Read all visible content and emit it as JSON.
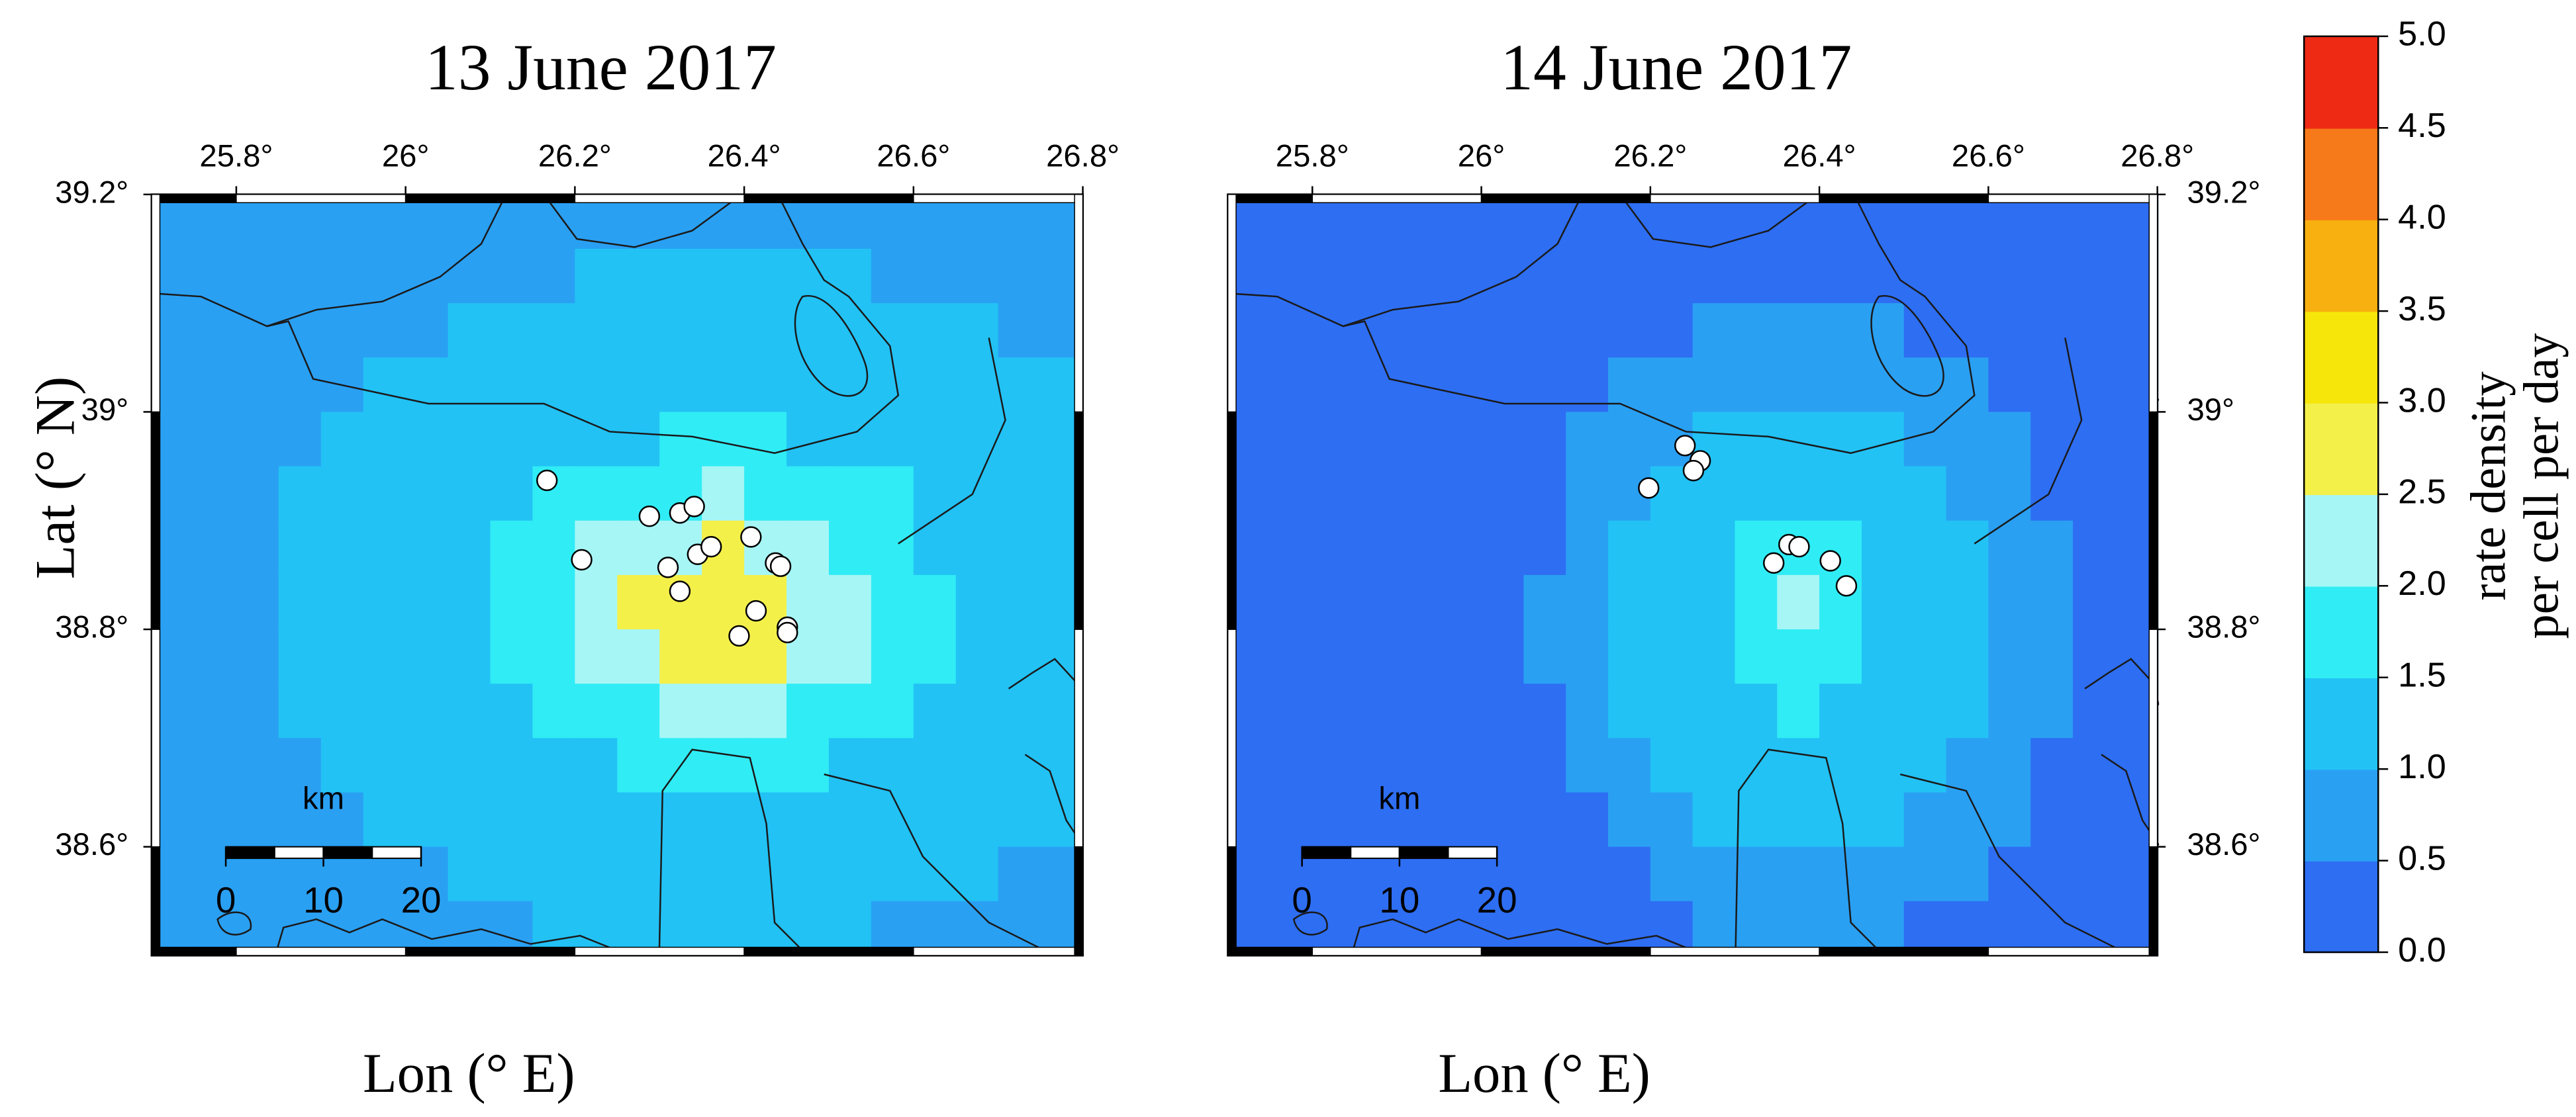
{
  "chart_data": [
    {
      "type": "heatmap",
      "title": "13 June 2017",
      "xlabel": "Lon (° E)",
      "ylabel": "Lat (° N)",
      "xlim": [
        25.7,
        26.8
      ],
      "ylim": [
        38.5,
        39.2
      ],
      "xticks": [
        {
          "value": 25.8,
          "label": "25.8°"
        },
        {
          "value": 26,
          "label": "26°"
        },
        {
          "value": 26.2,
          "label": "26.2°"
        },
        {
          "value": 26.4,
          "label": "26.4°"
        },
        {
          "value": 26.6,
          "label": "26.6°"
        },
        {
          "value": 26.8,
          "label": "26.8°"
        }
      ],
      "yticks": [
        {
          "value": 38.6,
          "label": "38.6°"
        },
        {
          "value": 38.8,
          "label": "38.8°"
        },
        {
          "value": 39,
          "label": "39°"
        },
        {
          "value": 39.2,
          "label": "39.2°"
        }
      ],
      "ytick_side": "left",
      "grid_x": [
        25.725,
        25.775,
        25.825,
        25.875,
        25.925,
        25.975,
        26.025,
        26.075,
        26.125,
        26.175,
        26.225,
        26.275,
        26.325,
        26.375,
        26.425,
        26.475,
        26.525,
        26.575,
        26.625,
        26.675,
        26.725,
        26.775
      ],
      "grid_y": [
        39.175,
        39.125,
        39.075,
        39.025,
        38.975,
        38.925,
        38.875,
        38.825,
        38.775,
        38.725,
        38.675,
        38.625,
        38.575,
        38.525
      ],
      "z": [
        [
          0.8,
          0.8,
          0.8,
          0.8,
          0.8,
          0.8,
          0.8,
          0.8,
          0.8,
          0.8,
          0.8,
          0.8,
          0.8,
          0.8,
          0.8,
          0.8,
          0.8,
          0.8,
          0.8,
          0.8,
          0.8,
          0.8
        ],
        [
          0.8,
          0.8,
          0.8,
          0.8,
          0.8,
          0.8,
          0.8,
          0.8,
          0.8,
          0.8,
          1.2,
          1.2,
          1.2,
          1.2,
          1.2,
          1.2,
          1.2,
          0.8,
          0.8,
          0.8,
          0.8,
          0.8
        ],
        [
          0.8,
          0.8,
          0.8,
          0.8,
          0.8,
          0.8,
          0.8,
          1.2,
          1.2,
          1.2,
          1.2,
          1.2,
          1.2,
          1.2,
          1.2,
          1.2,
          1.2,
          1.2,
          1.2,
          1.2,
          0.8,
          0.8
        ],
        [
          0.8,
          0.8,
          0.8,
          0.8,
          0.8,
          1.2,
          1.2,
          1.2,
          1.2,
          1.2,
          1.2,
          1.2,
          1.2,
          1.2,
          1.2,
          1.2,
          1.2,
          1.2,
          1.2,
          1.2,
          1.2,
          1.2
        ],
        [
          0.8,
          0.8,
          0.8,
          0.8,
          1.2,
          1.2,
          1.2,
          1.2,
          1.2,
          1.2,
          1.2,
          1.2,
          1.7,
          1.7,
          1.7,
          1.2,
          1.2,
          1.2,
          1.2,
          1.2,
          1.2,
          1.2
        ],
        [
          0.8,
          0.8,
          0.8,
          1.2,
          1.2,
          1.2,
          1.2,
          1.2,
          1.2,
          1.7,
          1.7,
          1.7,
          1.7,
          2.2,
          1.7,
          1.7,
          1.7,
          1.7,
          1.2,
          1.2,
          1.2,
          1.2
        ],
        [
          0.8,
          0.8,
          0.8,
          1.2,
          1.2,
          1.2,
          1.2,
          1.2,
          1.7,
          1.7,
          2.2,
          2.2,
          2.2,
          2.7,
          2.2,
          2.2,
          1.7,
          1.7,
          1.2,
          1.2,
          1.2,
          1.2
        ],
        [
          0.8,
          0.8,
          0.8,
          1.2,
          1.2,
          1.2,
          1.2,
          1.2,
          1.7,
          1.7,
          2.2,
          2.7,
          2.7,
          2.7,
          2.7,
          2.2,
          2.2,
          1.7,
          1.7,
          1.2,
          1.2,
          1.2
        ],
        [
          0.8,
          0.8,
          0.8,
          1.2,
          1.2,
          1.2,
          1.2,
          1.2,
          1.7,
          1.7,
          2.2,
          2.2,
          2.7,
          2.7,
          2.7,
          2.2,
          2.2,
          1.7,
          1.7,
          1.2,
          1.2,
          1.2
        ],
        [
          0.8,
          0.8,
          0.8,
          1.2,
          1.2,
          1.2,
          1.2,
          1.2,
          1.2,
          1.7,
          1.7,
          1.7,
          2.2,
          2.2,
          2.2,
          1.7,
          1.7,
          1.7,
          1.2,
          1.2,
          1.2,
          1.2
        ],
        [
          0.8,
          0.8,
          0.8,
          0.8,
          1.2,
          1.2,
          1.2,
          1.2,
          1.2,
          1.2,
          1.2,
          1.7,
          1.7,
          1.7,
          1.7,
          1.7,
          1.2,
          1.2,
          1.2,
          1.2,
          1.2,
          1.2
        ],
        [
          0.8,
          0.8,
          0.8,
          0.8,
          0.8,
          1.2,
          1.2,
          1.2,
          1.2,
          1.2,
          1.2,
          1.2,
          1.2,
          1.2,
          1.2,
          1.2,
          1.2,
          1.2,
          1.2,
          1.2,
          1.2,
          1.2
        ],
        [
          0.8,
          0.8,
          0.8,
          0.8,
          0.8,
          0.8,
          0.8,
          1.2,
          1.2,
          1.2,
          1.2,
          1.2,
          1.2,
          1.2,
          1.2,
          1.2,
          1.2,
          1.2,
          1.2,
          1.2,
          0.8,
          0.8
        ],
        [
          0.8,
          0.8,
          0.8,
          0.8,
          0.8,
          0.8,
          0.8,
          0.8,
          0.8,
          1.2,
          1.2,
          1.2,
          1.2,
          1.2,
          1.2,
          1.2,
          1.2,
          0.8,
          0.8,
          0.8,
          0.8,
          0.8
        ]
      ],
      "events": {
        "color": "#ffffff",
        "x": [
          26.167,
          26.208,
          26.288,
          26.324,
          26.341,
          26.31,
          26.324,
          26.345,
          26.361,
          26.408,
          26.437,
          26.443,
          26.414,
          26.394,
          26.451,
          26.451
        ],
        "y": [
          38.937,
          38.864,
          38.904,
          38.907,
          38.913,
          38.857,
          38.835,
          38.869,
          38.876,
          38.885,
          38.861,
          38.858,
          38.817,
          38.794,
          38.802,
          38.797
        ]
      },
      "scale_bar": {
        "label": "km",
        "ticks": [
          0,
          10,
          20
        ]
      }
    },
    {
      "type": "heatmap",
      "title": "14 June 2017",
      "xlabel": "Lon (° E)",
      "xlim": [
        25.7,
        26.8
      ],
      "ylim": [
        38.5,
        39.2
      ],
      "xticks": [
        {
          "value": 25.8,
          "label": "25.8°"
        },
        {
          "value": 26,
          "label": "26°"
        },
        {
          "value": 26.2,
          "label": "26.2°"
        },
        {
          "value": 26.4,
          "label": "26.4°"
        },
        {
          "value": 26.6,
          "label": "26.6°"
        },
        {
          "value": 26.8,
          "label": "26.8°"
        }
      ],
      "yticks": [
        {
          "value": 38.6,
          "label": "38.6°"
        },
        {
          "value": 38.8,
          "label": "38.8°"
        },
        {
          "value": 39,
          "label": "39°"
        },
        {
          "value": 39.2,
          "label": "39.2°"
        }
      ],
      "ytick_side": "right",
      "grid_x": [
        25.725,
        25.775,
        25.825,
        25.875,
        25.925,
        25.975,
        26.025,
        26.075,
        26.125,
        26.175,
        26.225,
        26.275,
        26.325,
        26.375,
        26.425,
        26.475,
        26.525,
        26.575,
        26.625,
        26.675,
        26.725,
        26.775
      ],
      "grid_y": [
        39.175,
        39.125,
        39.075,
        39.025,
        38.975,
        38.925,
        38.875,
        38.825,
        38.775,
        38.725,
        38.675,
        38.625,
        38.575,
        38.525
      ],
      "z": [
        [
          0.3,
          0.3,
          0.3,
          0.3,
          0.3,
          0.3,
          0.3,
          0.3,
          0.3,
          0.3,
          0.3,
          0.3,
          0.3,
          0.3,
          0.3,
          0.3,
          0.3,
          0.3,
          0.3,
          0.3,
          0.3,
          0.3
        ],
        [
          0.3,
          0.3,
          0.3,
          0.3,
          0.3,
          0.3,
          0.3,
          0.3,
          0.3,
          0.3,
          0.3,
          0.3,
          0.3,
          0.3,
          0.3,
          0.3,
          0.3,
          0.3,
          0.3,
          0.3,
          0.3,
          0.3
        ],
        [
          0.3,
          0.3,
          0.3,
          0.3,
          0.3,
          0.3,
          0.3,
          0.3,
          0.3,
          0.3,
          0.3,
          0.8,
          0.8,
          0.8,
          0.8,
          0.8,
          0.3,
          0.3,
          0.3,
          0.3,
          0.3,
          0.3
        ],
        [
          0.3,
          0.3,
          0.3,
          0.3,
          0.3,
          0.3,
          0.3,
          0.3,
          0.3,
          0.8,
          0.8,
          0.8,
          0.8,
          0.8,
          0.8,
          0.8,
          0.8,
          0.8,
          0.3,
          0.3,
          0.3,
          0.3
        ],
        [
          0.3,
          0.3,
          0.3,
          0.3,
          0.3,
          0.3,
          0.3,
          0.3,
          0.8,
          0.8,
          0.8,
          1.2,
          1.2,
          1.2,
          1.2,
          1.2,
          0.8,
          0.8,
          0.8,
          0.3,
          0.3,
          0.3
        ],
        [
          0.3,
          0.3,
          0.3,
          0.3,
          0.3,
          0.3,
          0.3,
          0.3,
          0.8,
          0.8,
          1.2,
          1.2,
          1.2,
          1.2,
          1.2,
          1.2,
          1.2,
          0.8,
          0.8,
          0.3,
          0.3,
          0.3
        ],
        [
          0.3,
          0.3,
          0.3,
          0.3,
          0.3,
          0.3,
          0.3,
          0.3,
          0.8,
          1.2,
          1.2,
          1.2,
          1.7,
          1.7,
          1.7,
          1.2,
          1.2,
          1.2,
          0.8,
          0.8,
          0.3,
          0.3
        ],
        [
          0.3,
          0.3,
          0.3,
          0.3,
          0.3,
          0.3,
          0.3,
          0.8,
          0.8,
          1.2,
          1.2,
          1.2,
          1.7,
          2.2,
          1.7,
          1.2,
          1.2,
          1.2,
          0.8,
          0.8,
          0.3,
          0.3
        ],
        [
          0.3,
          0.3,
          0.3,
          0.3,
          0.3,
          0.3,
          0.3,
          0.8,
          0.8,
          1.2,
          1.2,
          1.2,
          1.7,
          1.7,
          1.7,
          1.2,
          1.2,
          1.2,
          0.8,
          0.8,
          0.3,
          0.3
        ],
        [
          0.3,
          0.3,
          0.3,
          0.3,
          0.3,
          0.3,
          0.3,
          0.3,
          0.8,
          1.2,
          1.2,
          1.2,
          1.2,
          1.7,
          1.2,
          1.2,
          1.2,
          1.2,
          0.8,
          0.8,
          0.3,
          0.3
        ],
        [
          0.3,
          0.3,
          0.3,
          0.3,
          0.3,
          0.3,
          0.3,
          0.3,
          0.8,
          0.8,
          1.2,
          1.2,
          1.2,
          1.2,
          1.2,
          1.2,
          1.2,
          0.8,
          0.8,
          0.3,
          0.3,
          0.3
        ],
        [
          0.3,
          0.3,
          0.3,
          0.3,
          0.3,
          0.3,
          0.3,
          0.3,
          0.3,
          0.8,
          0.8,
          1.2,
          1.2,
          1.2,
          1.2,
          1.2,
          0.8,
          0.8,
          0.8,
          0.3,
          0.3,
          0.3
        ],
        [
          0.3,
          0.3,
          0.3,
          0.3,
          0.3,
          0.3,
          0.3,
          0.3,
          0.3,
          0.3,
          0.8,
          0.8,
          0.8,
          0.8,
          0.8,
          0.8,
          0.8,
          0.8,
          0.3,
          0.3,
          0.3,
          0.3
        ],
        [
          0.3,
          0.3,
          0.3,
          0.3,
          0.3,
          0.3,
          0.3,
          0.3,
          0.3,
          0.3,
          0.3,
          0.8,
          0.8,
          0.8,
          0.8,
          0.8,
          0.3,
          0.3,
          0.3,
          0.3,
          0.3,
          0.3
        ]
      ],
      "events": {
        "color": "#ffffff",
        "x": [
          26.241,
          26.259,
          26.251,
          26.198,
          26.364,
          26.376,
          26.346,
          26.413,
          26.432
        ],
        "y": [
          38.969,
          38.955,
          38.946,
          38.93,
          38.878,
          38.876,
          38.861,
          38.863,
          38.84
        ]
      },
      "scale_bar": {
        "label": "km",
        "ticks": [
          0,
          10,
          20
        ]
      }
    }
  ],
  "colorbar": {
    "label": [
      "rate density",
      "per cell per day"
    ],
    "lim": [
      0,
      5
    ],
    "ticks": [
      {
        "value": 0,
        "label": "0.0"
      },
      {
        "value": 0.5,
        "label": "0.5"
      },
      {
        "value": 1,
        "label": "1.0"
      },
      {
        "value": 1.5,
        "label": "1.5"
      },
      {
        "value": 2,
        "label": "2.0"
      },
      {
        "value": 2.5,
        "label": "2.5"
      },
      {
        "value": 3,
        "label": "3.0"
      },
      {
        "value": 3.5,
        "label": "3.5"
      },
      {
        "value": 4,
        "label": "4.0"
      },
      {
        "value": 4.5,
        "label": "4.5"
      },
      {
        "value": 5,
        "label": "5.0"
      }
    ],
    "colors": [
      "#2e6ef3",
      "#2aa0f3",
      "#22c2f5",
      "#30ecf5",
      "#a6f6f6",
      "#f4f04a",
      "#f7e60a",
      "#f8b010",
      "#f77a1a",
      "#ee2a14"
    ]
  }
}
